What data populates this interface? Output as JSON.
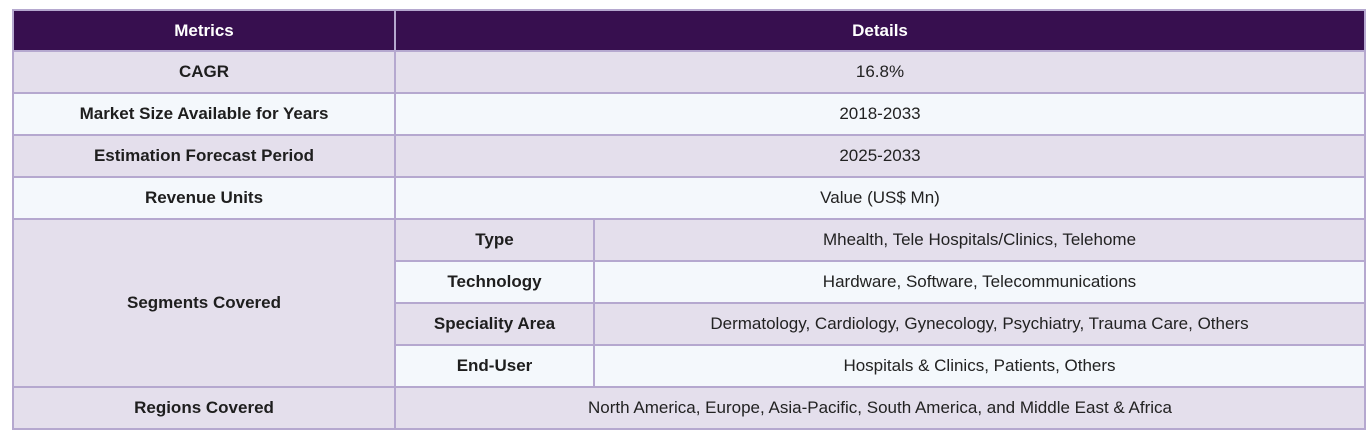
{
  "table": {
    "headers": {
      "metrics": "Metrics",
      "details": "Details"
    },
    "rows": [
      {
        "metric": "CAGR",
        "detail": "16.8%"
      },
      {
        "metric": "Market Size Available for Years",
        "detail": "2018-2033"
      },
      {
        "metric": "Estimation Forecast Period",
        "detail": "2025-2033"
      },
      {
        "metric": "Revenue Units",
        "detail": "Value (US$ Mn)"
      }
    ],
    "segments": {
      "label": "Segments Covered",
      "items": [
        {
          "name": "Type",
          "value": "Mhealth, Tele Hospitals/Clinics, Telehome"
        },
        {
          "name": "Technology",
          "value": "Hardware, Software, Telecommunications"
        },
        {
          "name": "Speciality Area",
          "value": "Dermatology, Cardiology, Gynecology, Psychiatry, Trauma Care, Others"
        },
        {
          "name": "End-User",
          "value": "Hospitals & Clinics, Patients, Others"
        }
      ]
    },
    "regions": {
      "label": "Regions Covered",
      "value": "North America, Europe, Asia-Pacific, South America, and Middle East & Africa"
    }
  }
}
